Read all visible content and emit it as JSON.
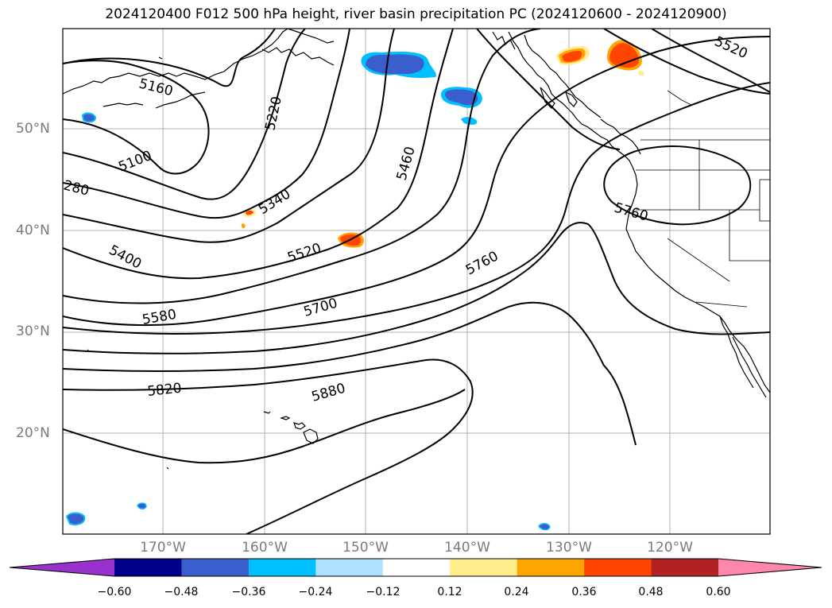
{
  "title": "2024120400 F012 500 hPa height, river basin precipitation PC (2024120600 - 2024120900)",
  "lat_labels": [
    "50°N",
    "40°N",
    "30°N",
    "20°N"
  ],
  "lon_labels": [
    "170°W",
    "160°W",
    "150°W",
    "140°W",
    "130°W",
    "120°W"
  ],
  "contour_labels": [
    "5160",
    "5220",
    "5100",
    "280",
    "5340",
    "5460",
    "5520",
    "5520",
    "5400",
    "5760",
    "5760",
    "5580",
    "5700",
    "5820",
    "5880"
  ],
  "colorbar": {
    "ticks": [
      "−0.60",
      "−0.48",
      "−0.36",
      "−0.24",
      "−0.12",
      "0.12",
      "0.24",
      "0.36",
      "0.48",
      "0.60"
    ],
    "colors": [
      "#9932CC",
      "#00008B",
      "#3A5FCD",
      "#00BFFF",
      "#B0E2FF",
      "#FFFFFF",
      "#FFEC8B",
      "#FFA500",
      "#FF4500",
      "#B22222",
      "#FF88AA"
    ],
    "under_color": "#9932CC",
    "over_color": "#FF88AA"
  }
}
